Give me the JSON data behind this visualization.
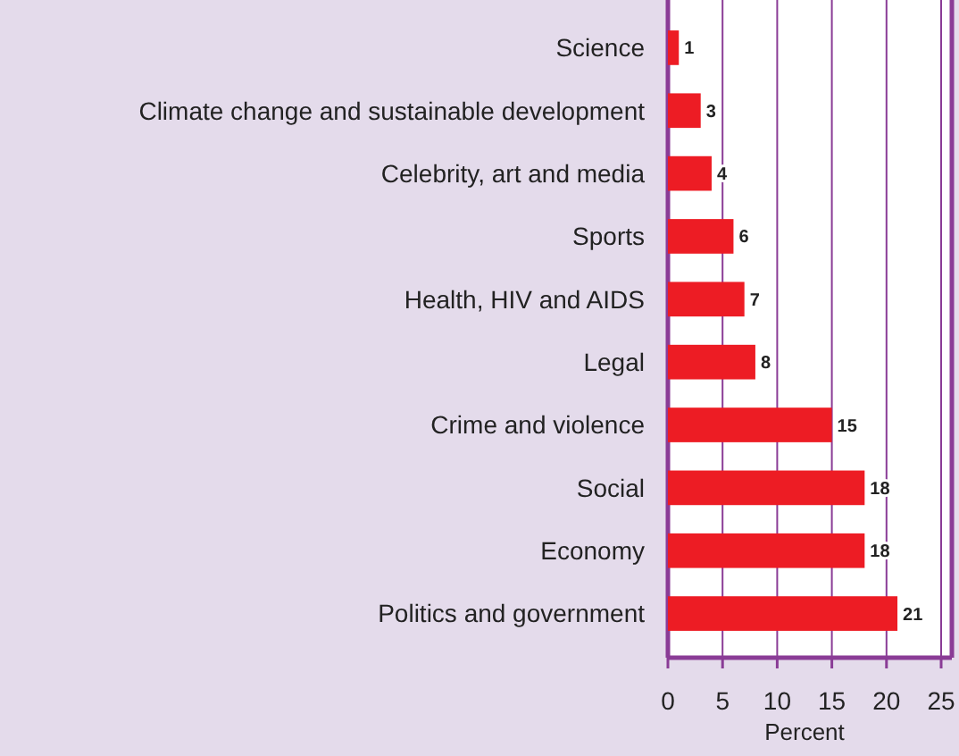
{
  "chart_data": {
    "type": "bar",
    "orientation": "horizontal",
    "xlabel": "Percent",
    "categories": [
      "Science",
      "Climate change and sustainable development",
      "Celebrity, art and media",
      "Sports",
      "Health, HIV and AIDS",
      "Legal",
      "Crime and violence",
      "Social",
      "Economy",
      "Politics and government"
    ],
    "values": [
      1,
      3,
      4,
      6,
      7,
      8,
      15,
      18,
      18,
      21
    ],
    "color": "#ed1c24",
    "xlim": [
      0,
      25
    ],
    "xticks": [
      0,
      5,
      10,
      15,
      20,
      25
    ],
    "grid": "x",
    "data_labels": true
  }
}
